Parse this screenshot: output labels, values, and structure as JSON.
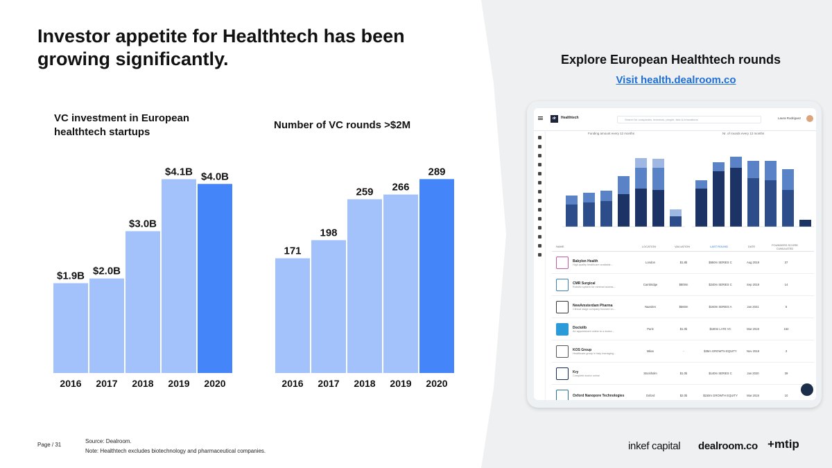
{
  "slide": {
    "title": "Investor appetite for Healthtech has been growing significantly.",
    "page": "Page / 31",
    "source_line1": "Source: Dealroom.",
    "source_line2": "Note: Healthtech excludes biotechnology and pharmaceutical companies."
  },
  "explore": {
    "title": "Explore European Healthtech rounds",
    "link": "Visit health.dealroom.co"
  },
  "logos": {
    "inkef": "inkef capital",
    "dealroom": "dealroom.co",
    "mtip": "+mtip"
  },
  "colors": {
    "bar_light": "#a3c2fb",
    "bar_highlight": "#4485fa",
    "panel_bg": "#eff0f2",
    "link": "#1f6fd6"
  },
  "chart_data": [
    {
      "type": "bar",
      "title": "VC investment in European healthtech startups",
      "categories": [
        "2016",
        "2017",
        "2018",
        "2019",
        "2020"
      ],
      "values": [
        1.9,
        2.0,
        3.0,
        4.1,
        4.0
      ],
      "data_labels": [
        "$1.9B",
        "$2.0B",
        "$3.0B",
        "$4.1B",
        "$4.0B"
      ],
      "highlight_index": 4,
      "xlabel": "",
      "ylabel": "",
      "ylim": [
        0,
        4.4
      ]
    },
    {
      "type": "bar",
      "title": "Number of VC rounds >$2M",
      "categories": [
        "2016",
        "2017",
        "2018",
        "2019",
        "2020"
      ],
      "values": [
        171,
        198,
        259,
        266,
        289
      ],
      "data_labels": [
        "171",
        "198",
        "259",
        "266",
        "289"
      ],
      "highlight_index": 4,
      "xlabel": "",
      "ylabel": "",
      "ylim": [
        0,
        310
      ]
    }
  ],
  "screen": {
    "brand": "Healthtech",
    "brand_sub": "Database by dealroom.co",
    "search_placeholder": "Search for companies, investors, people, lists & innovations",
    "user": "Laura Rodriguez",
    "chart_left_title": "Funding amount every 12 months",
    "chart_right_title": "Nr. of rounds every 12 months",
    "table_headers": [
      "NAME",
      "LOCATION",
      "VALUATION",
      "LAST ROUND",
      "DATE",
      "FOUNDERS SCORE CUMULATED"
    ],
    "rows": [
      {
        "name": "Babylon Health",
        "desc": "High quality healthcare available...",
        "location": "London",
        "valuation": "$1.8b",
        "round": "$550m SERIES C",
        "date": "Aug 2019",
        "score": "37"
      },
      {
        "name": "CMR Surgical",
        "desc": "Robotic system for minimal access...",
        "location": "Cambridge",
        "valuation": "$800m",
        "round": "$240m SERIES C",
        "date": "Sep 2019",
        "score": "14"
      },
      {
        "name": "NewAmsterdam Pharma",
        "desc": "Clinical stage company focused on...",
        "location": "Naarden",
        "valuation": "$560m",
        "round": "$160m SERIES A",
        "date": "Jan 2021",
        "score": "5"
      },
      {
        "name": "Doctolib",
        "desc": "An appointment online to a doctor...",
        "location": "Paris",
        "valuation": "$1.0b",
        "round": "$180m LATE VC",
        "date": "Mar 2019",
        "score": "152"
      },
      {
        "name": "KOS Group",
        "desc": "Healthcare group in Italy managing...",
        "location": "Milan",
        "valuation": "-",
        "round": "$35m GROWTH EQUITY",
        "date": "Nov 2019",
        "score": "3"
      },
      {
        "name": "Kry",
        "desc": "Complete doctor online",
        "location": "Stockholm",
        "valuation": "$1.0b",
        "round": "$140m SERIES C",
        "date": "Jan 2020",
        "score": "39"
      },
      {
        "name": "Oxford Nanopore Technologies",
        "desc": "",
        "location": "Oxford",
        "valuation": "$2.0b",
        "round": "$150m GROWTH EQUITY",
        "date": "Mar 2019",
        "score": "10"
      }
    ]
  }
}
